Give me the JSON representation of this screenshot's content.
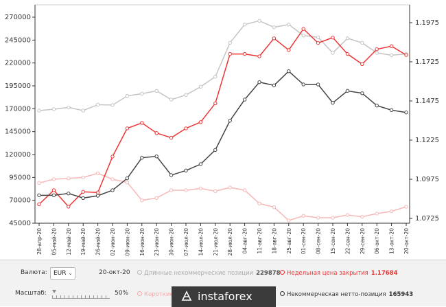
{
  "chart_data": {
    "type": "line",
    "categories": [
      "28-апр-20",
      "05-май-20",
      "12-май-20",
      "19-май-20",
      "26-май-20",
      "02-июн-20",
      "09-июн-20",
      "16-июн-20",
      "23-июн-20",
      "30-июн-20",
      "07-июл-20",
      "14-июл-20",
      "21-июл-20",
      "28-июл-20",
      "04-авг-20",
      "11-авг-20",
      "18-авг-20",
      "25-авг-20",
      "01-сен-20",
      "08-сен-20",
      "15-сен-20",
      "22-сен-20",
      "29-сен-20",
      "06-окт-20",
      "13-окт-20",
      "20-окт-20"
    ],
    "left_axis": {
      "min": 45000,
      "max": 270000,
      "ticks": [
        "270000",
        "245000",
        "220000",
        "195000",
        "170000",
        "145000",
        "120000",
        "95000",
        "70000",
        "45000"
      ]
    },
    "right_axis": {
      "min": 1.0725,
      "max": 1.1975,
      "ticks": [
        "1.1975",
        "1.1725",
        "1.1475",
        "1.1225",
        "1.0975",
        "1.0725"
      ]
    },
    "series": [
      {
        "name": "Длинные некоммерческие позиции",
        "axis": "left",
        "color": "#c4c4c4",
        "values": [
          168000,
          169500,
          171500,
          168000,
          174500,
          174000,
          184000,
          186500,
          189500,
          180000,
          185000,
          194000,
          205000,
          242000,
          262000,
          266000,
          259000,
          262000,
          250000,
          248000,
          231000,
          247000,
          242000,
          231000,
          228500,
          229878
        ]
      },
      {
        "name": "Короткие некоммерческие позиции",
        "axis": "left",
        "color": "#f6b7b7",
        "values": [
          89000,
          93000,
          94000,
          95000,
          99500,
          93000,
          89500,
          70000,
          72500,
          81000,
          81000,
          83000,
          80000,
          84000,
          81000,
          66500,
          62500,
          48000,
          53000,
          51000,
          51000,
          54000,
          52000,
          55500,
          58000,
          63000
        ]
      },
      {
        "name": "Недельная цена закрытия",
        "axis": "right",
        "color": "#ee3333",
        "values": [
          1.0815,
          1.0905,
          1.08,
          1.0895,
          1.089,
          1.112,
          1.13,
          1.1335,
          1.127,
          1.124,
          1.13,
          1.134,
          1.146,
          1.1775,
          1.1775,
          1.176,
          1.1875,
          1.18,
          1.1935,
          1.1845,
          1.188,
          1.1775,
          1.171,
          1.1805,
          1.1825,
          1.17684
        ]
      },
      {
        "name": "Некоммерческая нетто-позиция",
        "axis": "left",
        "color": "#444444",
        "values": [
          75500,
          75500,
          77500,
          72500,
          75000,
          81000,
          94000,
          116500,
          118000,
          97500,
          102500,
          109500,
          125000,
          157000,
          180000,
          199000,
          195500,
          211000,
          196500,
          196500,
          176500,
          189500,
          187000,
          173500,
          168500,
          165943
        ]
      }
    ]
  },
  "controls": {
    "currency_label": "Валюта:",
    "currency_value": "EUR",
    "scale_label": "Масштаб:",
    "scale_value": "50%",
    "date": "20-окт-20",
    "legend": {
      "long": {
        "label": "Длинные некоммерческие позиции",
        "value": "229878"
      },
      "short": {
        "label": "Короткие н",
        "value": ""
      },
      "close": {
        "label": "Недельная цена закрытия",
        "value": "1.17684"
      },
      "net": {
        "label": "Некоммерческая нетто-позиция",
        "value": "165943"
      }
    }
  },
  "watermark": {
    "text": "instaforex"
  }
}
